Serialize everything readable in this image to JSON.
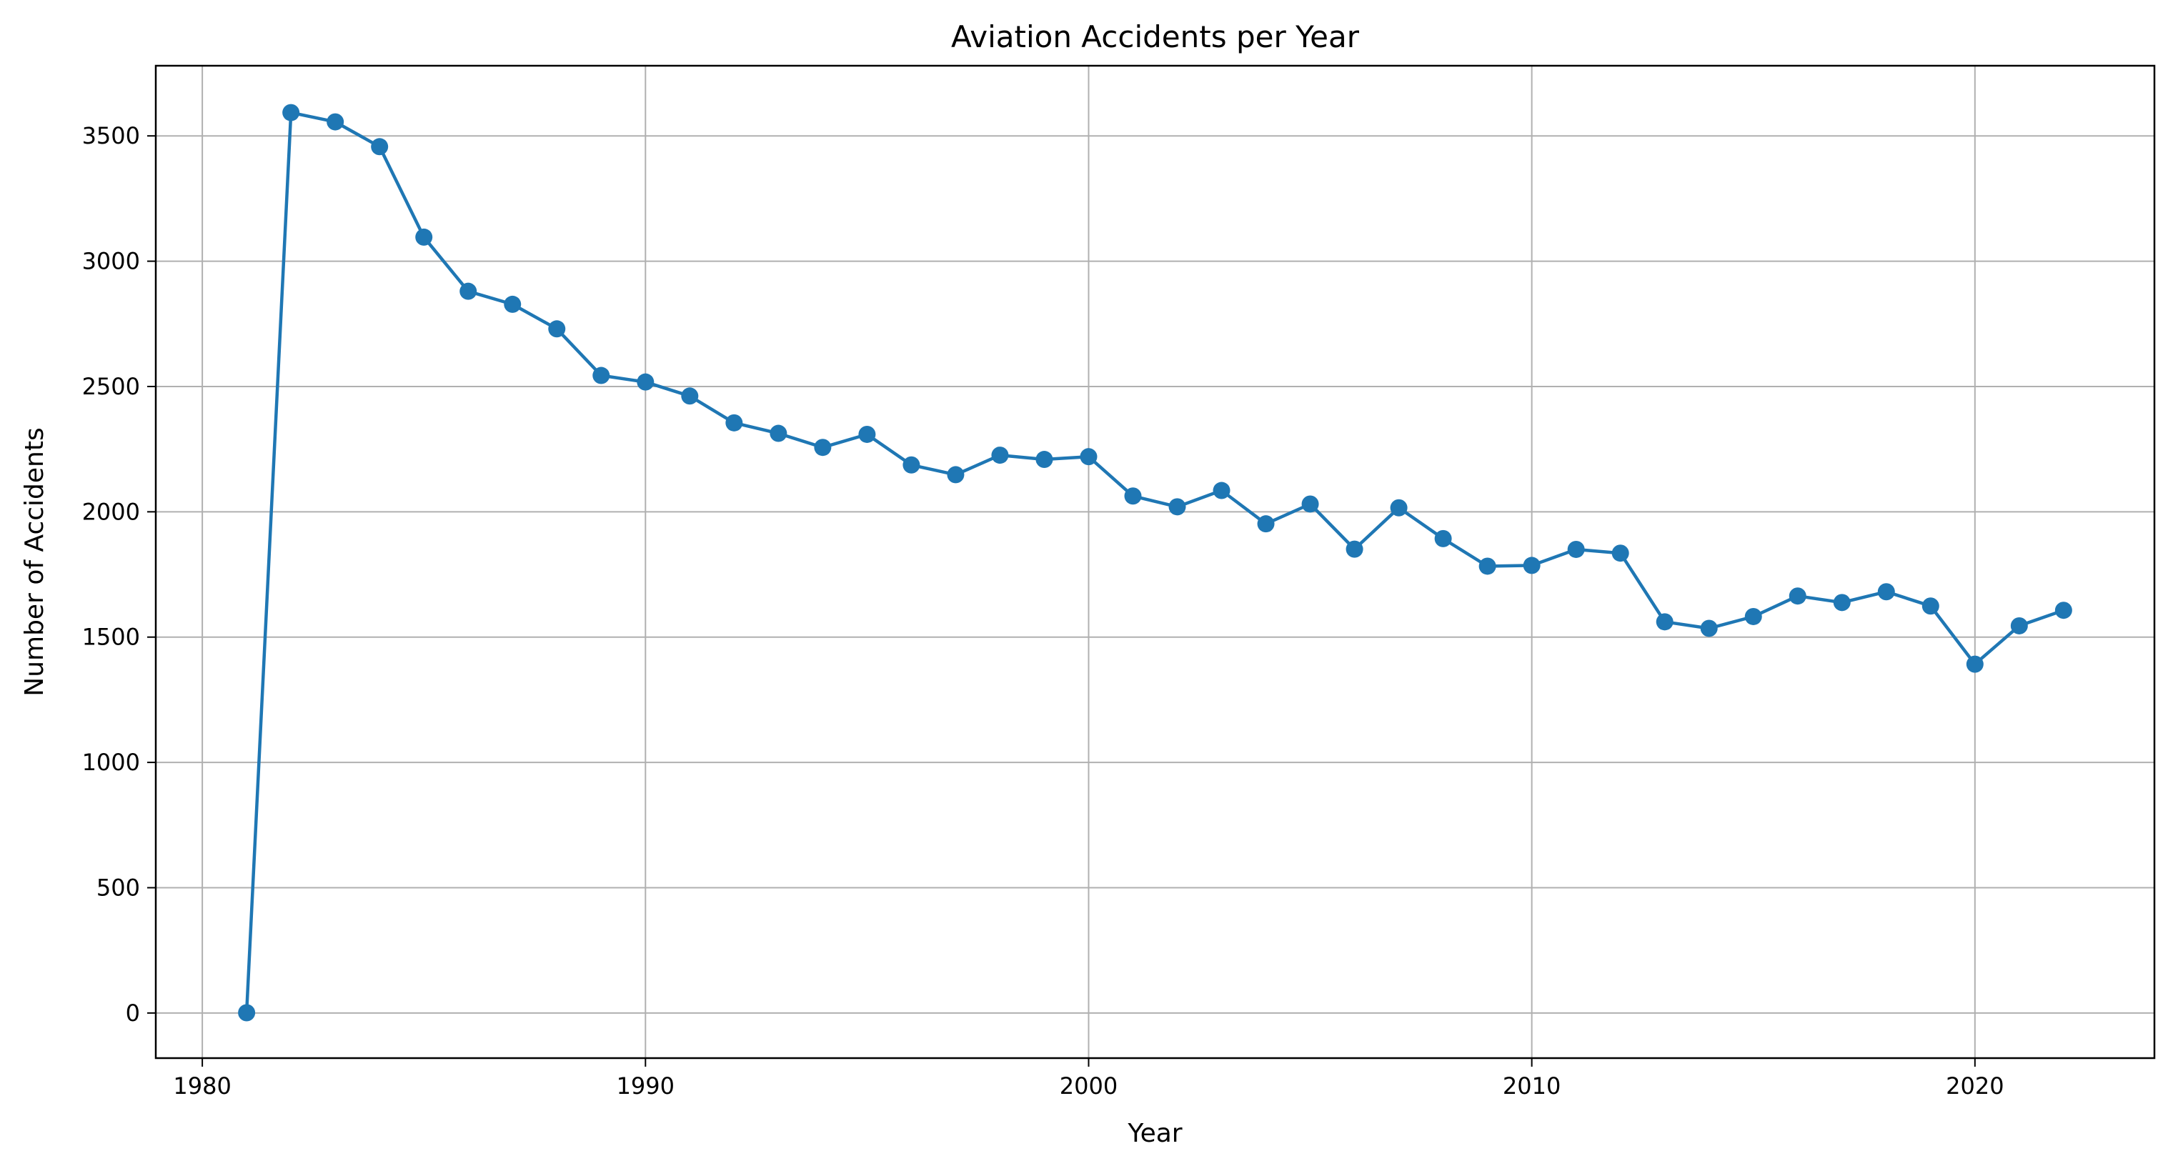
{
  "chart_data": {
    "type": "line",
    "title": "Aviation Accidents per Year",
    "xlabel": "Year",
    "ylabel": "Number of Accidents",
    "xlim": [
      1978.95,
      2024.05
    ],
    "ylim": [
      -180,
      3780
    ],
    "xticks": [
      1980,
      1990,
      2000,
      2010,
      2020
    ],
    "yticks": [
      0,
      500,
      1000,
      1500,
      2000,
      2500,
      3000,
      3500
    ],
    "grid": true,
    "marker": "circle",
    "line_color": "#1f77b4",
    "series": [
      {
        "x": [
          1981,
          1982,
          1983,
          1984,
          1985,
          1986,
          1987,
          1988,
          1989,
          1990,
          1991,
          1992,
          1993,
          1994,
          1995,
          1996,
          1997,
          1998,
          1999,
          2000,
          2001,
          2002,
          2003,
          2004,
          2005,
          2006,
          2007,
          2008,
          2009,
          2010,
          2011,
          2012,
          2013,
          2014,
          2015,
          2016,
          2017,
          2018,
          2019,
          2020,
          2021,
          2022
        ],
        "y": [
          1,
          3593,
          3556,
          3457,
          3096,
          2880,
          2828,
          2730,
          2544,
          2518,
          2462,
          2355,
          2313,
          2257,
          2309,
          2187,
          2148,
          2226,
          2209,
          2220,
          2063,
          2020,
          2085,
          1952,
          2031,
          1851,
          2016,
          1893,
          1783,
          1786,
          1850,
          1835,
          1561,
          1535,
          1582,
          1664,
          1638,
          1681,
          1624,
          1392,
          1545,
          1607
        ]
      }
    ]
  }
}
